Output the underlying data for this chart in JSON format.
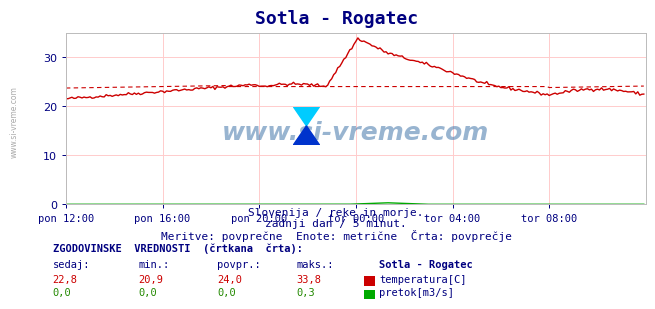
{
  "title": "Sotla - Rogatec",
  "bg_color": "#ffffff",
  "plot_bg_color": "#ffffff",
  "grid_color": "#ffcccc",
  "title_color": "#000080",
  "axis_label_color": "#000080",
  "text_color": "#000080",
  "subtitle_lines": [
    "Slovenija / reke in morje.",
    "zadnji dan / 5 minut.",
    "Meritve: povprečne  Enote: metrične  Črta: povprečje"
  ],
  "xlabel_ticks": [
    "pon 12:00",
    "pon 16:00",
    "pon 20:00",
    "tor 00:00",
    "tor 04:00",
    "tor 08:00"
  ],
  "xlim": [
    0,
    288
  ],
  "ylim": [
    0,
    35
  ],
  "yticks": [
    0,
    10,
    20,
    30
  ],
  "temp_color": "#cc0000",
  "flow_color": "#00aa00",
  "hist_color": "#cc0000",
  "watermark_text": "www.si-vreme.com",
  "watermark_color": "#4477aa",
  "watermark_alpha": 0.5,
  "table_header": "ZGODOVINSKE  VREDNOSTI  (črtkana  črta):",
  "table_cols": [
    "sedaj:",
    "min.:",
    "povpr.:",
    "maks.:",
    "Sotla - Rogatec"
  ],
  "table_row1": [
    "22,8",
    "20,9",
    "24,0",
    "33,8",
    "temperatura[C]"
  ],
  "table_row2": [
    "0,0",
    "0,0",
    "0,0",
    "0,3",
    "pretok[m3/s]"
  ],
  "temp_current": 22.8,
  "temp_min": 20.9,
  "temp_avg": 24.0,
  "temp_max": 33.8,
  "flow_max": 0.3
}
